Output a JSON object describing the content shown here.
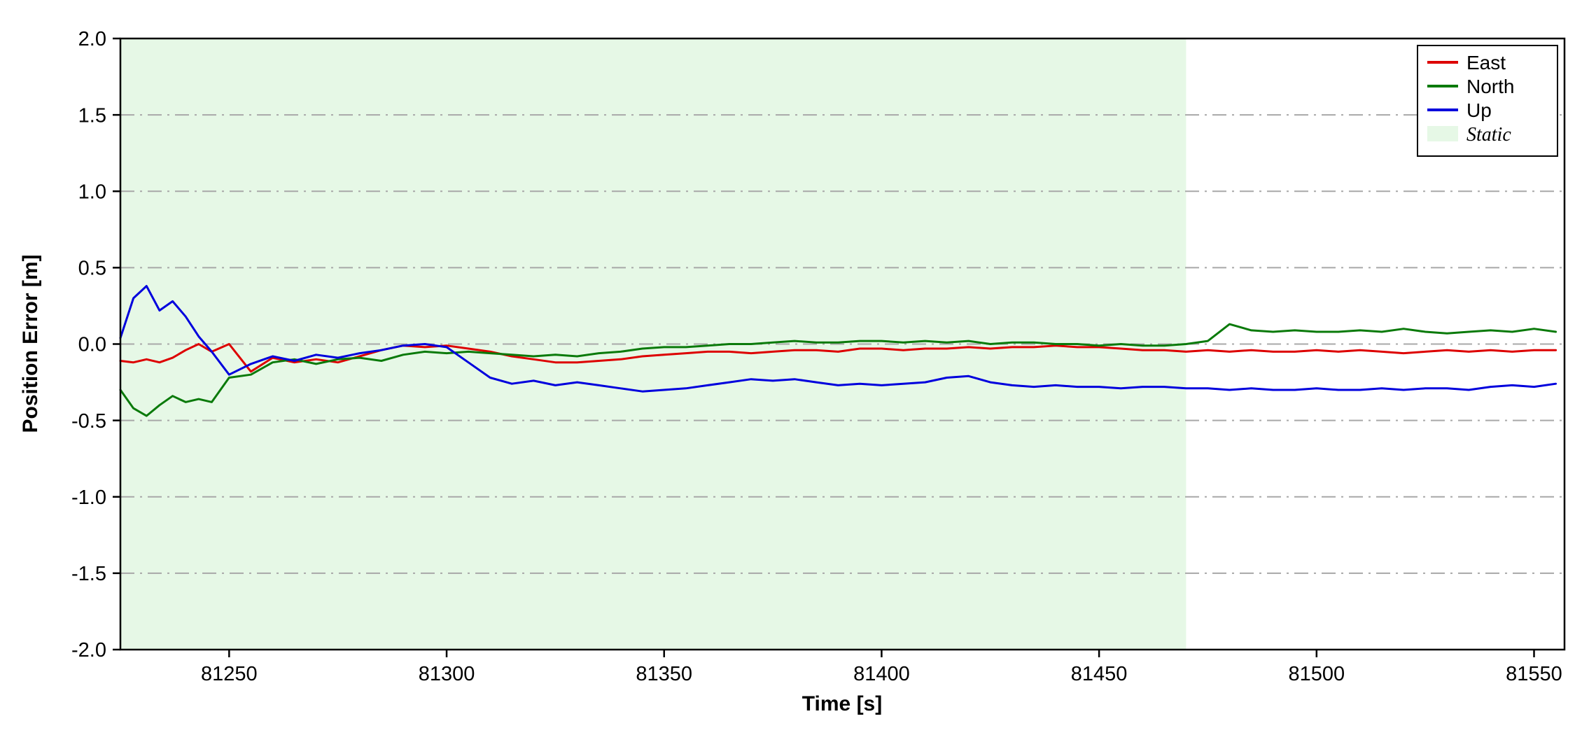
{
  "chart_data": {
    "type": "line",
    "title": "",
    "xlabel": "Time [s]",
    "ylabel": "Position Error [m]",
    "xlim": [
      81225,
      81557
    ],
    "ylim": [
      -2.0,
      2.0
    ],
    "grid": "horizontal-dash-dot",
    "legend_position": "upper-right",
    "x_ticks": {
      "values": [
        81250,
        81300,
        81350,
        81400,
        81450,
        81500,
        81550
      ],
      "labels": [
        "81250",
        "81300",
        "81350",
        "81400",
        "81450",
        "81500",
        "81550"
      ]
    },
    "y_ticks": {
      "values": [
        2.0,
        1.5,
        1.0,
        0.5,
        0.0,
        -0.5,
        -1.0,
        -1.5,
        -2.0
      ],
      "labels": [
        "2.0",
        "1.5",
        "1.0",
        "0.5",
        "0.0",
        "-0.5",
        "-1.0",
        "-1.5",
        "-2.0"
      ]
    },
    "static_region": {
      "label": "Static",
      "x_start": 81225,
      "x_end": 81470,
      "fill": "#e6f8e6"
    },
    "x": [
      81225,
      81228,
      81231,
      81234,
      81237,
      81240,
      81243,
      81246,
      81250,
      81255,
      81260,
      81265,
      81270,
      81275,
      81280,
      81285,
      81290,
      81295,
      81300,
      81305,
      81310,
      81315,
      81320,
      81325,
      81330,
      81335,
      81340,
      81345,
      81350,
      81355,
      81360,
      81365,
      81370,
      81375,
      81380,
      81385,
      81390,
      81395,
      81400,
      81405,
      81410,
      81415,
      81420,
      81425,
      81430,
      81435,
      81440,
      81445,
      81450,
      81455,
      81460,
      81465,
      81470,
      81475,
      81480,
      81485,
      81490,
      81495,
      81500,
      81505,
      81510,
      81515,
      81520,
      81525,
      81530,
      81535,
      81540,
      81545,
      81550,
      81555
    ],
    "series": [
      {
        "name": "East",
        "color": "#dd0000",
        "values": [
          -0.11,
          -0.12,
          -0.1,
          -0.12,
          -0.09,
          -0.04,
          0.0,
          -0.05,
          0.0,
          -0.18,
          -0.09,
          -0.12,
          -0.1,
          -0.12,
          -0.08,
          -0.04,
          -0.01,
          -0.02,
          -0.01,
          -0.03,
          -0.05,
          -0.08,
          -0.1,
          -0.12,
          -0.12,
          -0.11,
          -0.1,
          -0.08,
          -0.07,
          -0.06,
          -0.05,
          -0.05,
          -0.06,
          -0.05,
          -0.04,
          -0.04,
          -0.05,
          -0.03,
          -0.03,
          -0.04,
          -0.03,
          -0.03,
          -0.02,
          -0.03,
          -0.02,
          -0.02,
          -0.01,
          -0.02,
          -0.02,
          -0.03,
          -0.04,
          -0.04,
          -0.05,
          -0.04,
          -0.05,
          -0.04,
          -0.05,
          -0.05,
          -0.04,
          -0.05,
          -0.04,
          -0.05,
          -0.06,
          -0.05,
          -0.04,
          -0.05,
          -0.04,
          -0.05,
          -0.04,
          -0.04
        ]
      },
      {
        "name": "North",
        "color": "#0a7a0a",
        "values": [
          -0.3,
          -0.42,
          -0.47,
          -0.4,
          -0.34,
          -0.38,
          -0.36,
          -0.38,
          -0.22,
          -0.2,
          -0.12,
          -0.1,
          -0.13,
          -0.1,
          -0.09,
          -0.11,
          -0.07,
          -0.05,
          -0.06,
          -0.05,
          -0.06,
          -0.07,
          -0.08,
          -0.07,
          -0.08,
          -0.06,
          -0.05,
          -0.03,
          -0.02,
          -0.02,
          -0.01,
          0.0,
          0.0,
          0.01,
          0.02,
          0.01,
          0.01,
          0.02,
          0.02,
          0.01,
          0.02,
          0.01,
          0.02,
          0.0,
          0.01,
          0.01,
          0.0,
          0.0,
          -0.01,
          0.0,
          -0.01,
          -0.01,
          0.0,
          0.02,
          0.13,
          0.09,
          0.08,
          0.09,
          0.08,
          0.08,
          0.09,
          0.08,
          0.1,
          0.08,
          0.07,
          0.08,
          0.09,
          0.08,
          0.1,
          0.08
        ]
      },
      {
        "name": "Up",
        "color": "#0000dd",
        "values": [
          0.04,
          0.3,
          0.38,
          0.22,
          0.28,
          0.18,
          0.05,
          -0.05,
          -0.2,
          -0.13,
          -0.08,
          -0.11,
          -0.07,
          -0.09,
          -0.06,
          -0.04,
          -0.01,
          0.0,
          -0.02,
          -0.12,
          -0.22,
          -0.26,
          -0.24,
          -0.27,
          -0.25,
          -0.27,
          -0.29,
          -0.31,
          -0.3,
          -0.29,
          -0.27,
          -0.25,
          -0.23,
          -0.24,
          -0.23,
          -0.25,
          -0.27,
          -0.26,
          -0.27,
          -0.26,
          -0.25,
          -0.22,
          -0.21,
          -0.25,
          -0.27,
          -0.28,
          -0.27,
          -0.28,
          -0.28,
          -0.29,
          -0.28,
          -0.28,
          -0.29,
          -0.29,
          -0.3,
          -0.29,
          -0.3,
          -0.3,
          -0.29,
          -0.3,
          -0.3,
          -0.29,
          -0.3,
          -0.29,
          -0.29,
          -0.3,
          -0.28,
          -0.27,
          -0.28,
          -0.26
        ]
      }
    ],
    "legend": [
      {
        "label": "East",
        "color": "#dd0000",
        "type": "line"
      },
      {
        "label": "North",
        "color": "#0a7a0a",
        "type": "line"
      },
      {
        "label": "Up",
        "color": "#0000dd",
        "type": "line"
      },
      {
        "label": "Static",
        "color": "#e6f8e6",
        "type": "patch",
        "italic": true
      }
    ],
    "style": {
      "grid_color": "#a8a8a8",
      "border_color": "#000000",
      "tick_color": "#000000",
      "line_width": 3
    }
  }
}
